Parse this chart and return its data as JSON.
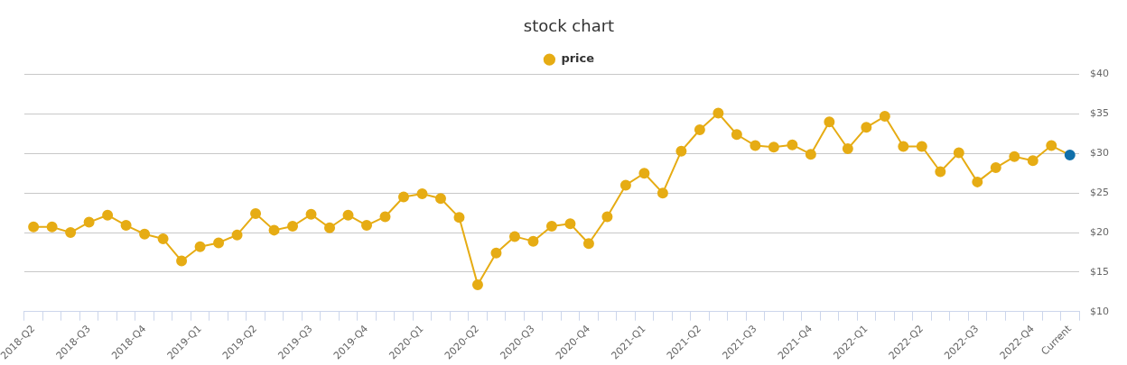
{
  "chart_data": {
    "type": "line",
    "title": "stock chart",
    "categories": [
      "2018-Q2",
      null,
      null,
      "2018-Q3",
      null,
      null,
      "2018-Q4",
      null,
      null,
      "2019-Q1",
      null,
      null,
      "2019-Q2",
      null,
      null,
      "2019-Q3",
      null,
      null,
      "2019-Q4",
      null,
      null,
      "2020-Q1",
      null,
      null,
      "2020-Q2",
      null,
      null,
      "2020-Q3",
      null,
      null,
      "2020-Q4",
      null,
      null,
      "2021-Q1",
      null,
      null,
      "2021-Q2",
      null,
      null,
      "2021-Q3",
      null,
      null,
      "2021-Q4",
      null,
      null,
      "2022-Q1",
      null,
      null,
      "2022-Q2",
      null,
      null,
      "2022-Q3",
      null,
      null,
      "2022-Q4",
      null,
      "Current"
    ],
    "series": [
      {
        "name": "price",
        "color": "#e6ac14",
        "colors": [
          "#e6ac14",
          "#e6ac14",
          "#e6ac14",
          "#e6ac14",
          "#e6ac14",
          "#e6ac14",
          "#e6ac14",
          "#e6ac14",
          "#e6ac14",
          "#e6ac14",
          "#e6ac14",
          "#e6ac14",
          "#e6ac14",
          "#e6ac14",
          "#e6ac14",
          "#e6ac14",
          "#e6ac14",
          "#e6ac14",
          "#e6ac14",
          "#e6ac14",
          "#e6ac14",
          "#e6ac14",
          "#e6ac14",
          "#e6ac14",
          "#e6ac14",
          "#e6ac14",
          "#e6ac14",
          "#e6ac14",
          "#e6ac14",
          "#e6ac14",
          "#e6ac14",
          "#e6ac14",
          "#e6ac14",
          "#e6ac14",
          "#e6ac14",
          "#e6ac14",
          "#e6ac14",
          "#e6ac14",
          "#e6ac14",
          "#e6ac14",
          "#e6ac14",
          "#e6ac14",
          "#e6ac14",
          "#e6ac14",
          "#e6ac14",
          "#e6ac14",
          "#e6ac14",
          "#e6ac14",
          "#e6ac14",
          "#e6ac14",
          "#e6ac14",
          "#e6ac14",
          "#e6ac14",
          "#e6ac14",
          "#e6ac14",
          "#e6ac14",
          "#1170aa"
        ],
        "values": [
          20.7,
          20.7,
          20.0,
          21.3,
          22.2,
          20.9,
          19.8,
          19.2,
          16.4,
          18.2,
          18.7,
          19.7,
          22.4,
          20.3,
          20.8,
          22.3,
          20.6,
          22.2,
          20.9,
          22.0,
          24.5,
          24.9,
          24.3,
          21.9,
          13.4,
          17.4,
          19.5,
          18.9,
          20.8,
          21.1,
          18.6,
          22.0,
          26.0,
          27.5,
          25.0,
          30.3,
          33.0,
          35.1,
          32.4,
          31.0,
          30.8,
          31.1,
          29.9,
          34.0,
          30.6,
          33.3,
          34.7,
          30.9,
          30.9,
          27.7,
          30.1,
          26.4,
          28.2,
          29.6,
          29.1,
          31.0,
          29.8
        ]
      }
    ],
    "ylim": [
      10,
      40
    ],
    "yticks": [
      {
        "value": 10,
        "label": "$10"
      },
      {
        "value": 15,
        "label": "$15"
      },
      {
        "value": 20,
        "label": "$20"
      },
      {
        "value": 25,
        "label": "$25"
      },
      {
        "value": 30,
        "label": "$30"
      },
      {
        "value": 35,
        "label": "$35"
      },
      {
        "value": 40,
        "label": "$40"
      }
    ],
    "grid": "y",
    "legend": "top",
    "marker": "circle"
  }
}
